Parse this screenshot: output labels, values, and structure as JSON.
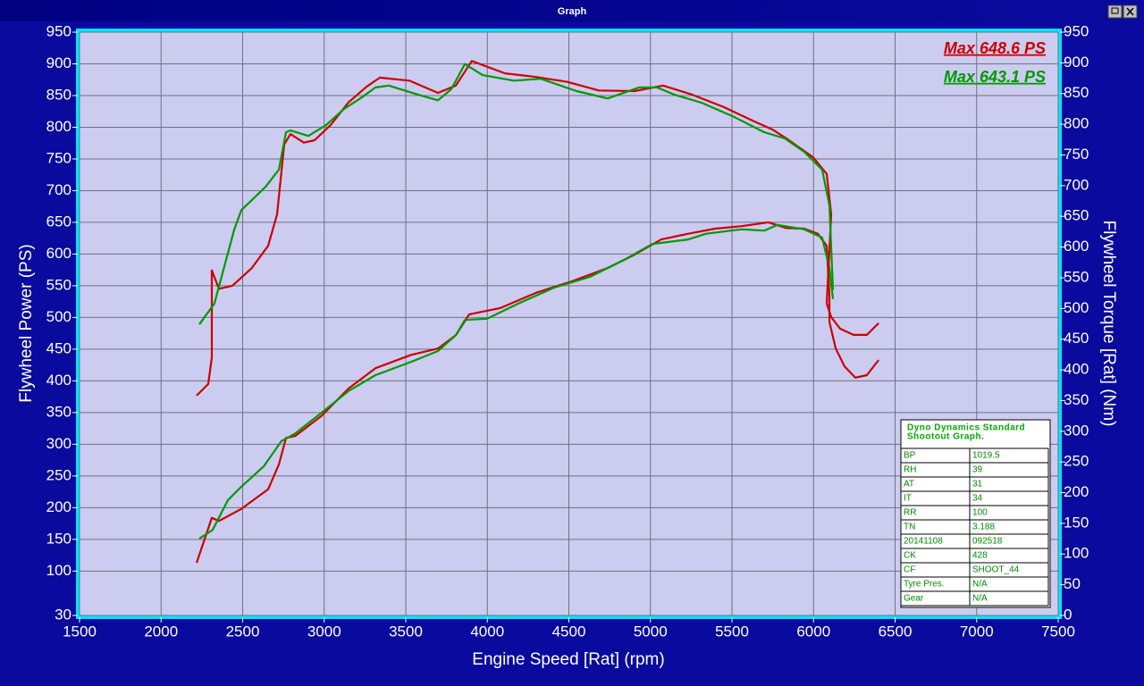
{
  "window": {
    "title": "Graph"
  },
  "chart_data": {
    "type": "line",
    "xlabel": "Engine Speed [Rat] (rpm)",
    "ylabel": "Flywheel Power (PS)",
    "y2label": "Flywheel Torque [Rat] (Nm)",
    "xlim": [
      1500,
      7500
    ],
    "xticks": [
      1500,
      2000,
      2500,
      3000,
      3500,
      4000,
      4500,
      5000,
      5500,
      6000,
      6500,
      7000,
      7500
    ],
    "ylim": [
      30,
      950
    ],
    "yticks": [
      30,
      100,
      150,
      200,
      250,
      300,
      350,
      400,
      450,
      500,
      550,
      600,
      650,
      700,
      750,
      800,
      850,
      900,
      950
    ],
    "y2lim": [
      0,
      950
    ],
    "y2ticks": [
      0,
      50,
      100,
      150,
      200,
      250,
      300,
      350,
      400,
      450,
      500,
      550,
      600,
      650,
      700,
      750,
      800,
      850,
      900,
      950
    ],
    "grid": true,
    "legend": "upper right",
    "series": [
      {
        "name": "Max 648.6 PS",
        "color": "#cc0000",
        "axis": "y",
        "x": [
          2218,
          2311,
          2355,
          2492,
          2656,
          2722,
          2766,
          2822,
          2985,
          3150,
          3314,
          3533,
          3697,
          3807,
          3889,
          4081,
          4300,
          4519,
          4738,
          4903,
          5066,
          5231,
          5396,
          5560,
          5723,
          5833,
          5943,
          6026,
          6081,
          6097,
          6097,
          6136,
          6190,
          6256,
          6327,
          6399
        ],
        "values": [
          113,
          184,
          179,
          198,
          229,
          268,
          310,
          313,
          345,
          388,
          420,
          441,
          451,
          472,
          505,
          515,
          539,
          557,
          578,
          599,
          623,
          632,
          640,
          644,
          650,
          641,
          640,
          632,
          613,
          536,
          493,
          451,
          423,
          405,
          409,
          433
        ]
      },
      {
        "name": "Max 643.1 PS",
        "color": "#009900",
        "axis": "y",
        "x": [
          2234,
          2316,
          2410,
          2492,
          2629,
          2738,
          2822,
          2985,
          3150,
          3314,
          3533,
          3697,
          3807,
          3862,
          3999,
          4191,
          4410,
          4629,
          4848,
          5012,
          5231,
          5341,
          5560,
          5697,
          5779,
          5943,
          6053,
          6097,
          6119
        ],
        "values": [
          151,
          165,
          212,
          233,
          265,
          305,
          317,
          350,
          384,
          409,
          430,
          447,
          472,
          496,
          498,
          522,
          547,
          564,
          592,
          616,
          623,
          632,
          639,
          637,
          646,
          639,
          626,
          578,
          529
        ]
      },
      {
        "color": "#cc0000",
        "axis": "y2",
        "x": [
          2218,
          2289,
          2311,
          2311,
          2355,
          2437,
          2557,
          2656,
          2711,
          2755,
          2793,
          2875,
          2941,
          3040,
          3150,
          3259,
          3341,
          3522,
          3697,
          3807,
          3905,
          4108,
          4300,
          4492,
          4684,
          4903,
          5078,
          5258,
          5450,
          5642,
          5751,
          5833,
          5998,
          6081,
          6108,
          6081,
          6108,
          6163,
          6245,
          6327,
          6399
        ],
        "values": [
          358,
          377,
          420,
          562,
          532,
          537,
          566,
          602,
          653,
          767,
          784,
          770,
          774,
          799,
          836,
          861,
          876,
          871,
          851,
          863,
          903,
          883,
          877,
          869,
          855,
          854,
          863,
          848,
          828,
          804,
          791,
          777,
          746,
          719,
          653,
          508,
          486,
          467,
          457,
          457,
          476
        ]
      },
      {
        "color": "#009900",
        "axis": "y2",
        "x": [
          2234,
          2327,
          2448,
          2492,
          2640,
          2722,
          2766,
          2793,
          2903,
          3013,
          3122,
          3221,
          3314,
          3396,
          3577,
          3697,
          3779,
          3862,
          3971,
          4163,
          4328,
          4547,
          4738,
          4930,
          5040,
          5149,
          5313,
          5505,
          5697,
          5823,
          5943,
          6053,
          6097,
          6119
        ],
        "values": [
          474,
          508,
          628,
          660,
          698,
          726,
          787,
          790,
          781,
          799,
          825,
          842,
          860,
          863,
          848,
          839,
          857,
          898,
          880,
          871,
          874,
          854,
          842,
          860,
          860,
          848,
          835,
          813,
          787,
          777,
          755,
          726,
          668,
          530
        ]
      }
    ]
  },
  "info_table": {
    "title_lines": [
      "Dyno Dynamics Standard",
      "Shootout Graph."
    ],
    "rows": [
      [
        "BP",
        "1019.5"
      ],
      [
        "RH",
        "39"
      ],
      [
        "AT",
        "31"
      ],
      [
        "IT",
        "34"
      ],
      [
        "RR",
        "100"
      ],
      [
        "TN",
        "3.188"
      ],
      [
        "20141108",
        "092518"
      ],
      [
        "CK",
        "428"
      ],
      [
        "CF",
        "SHOOT_44"
      ],
      [
        "Tyre Pres.",
        "N/A"
      ],
      [
        "Gear",
        "N/A"
      ]
    ]
  }
}
